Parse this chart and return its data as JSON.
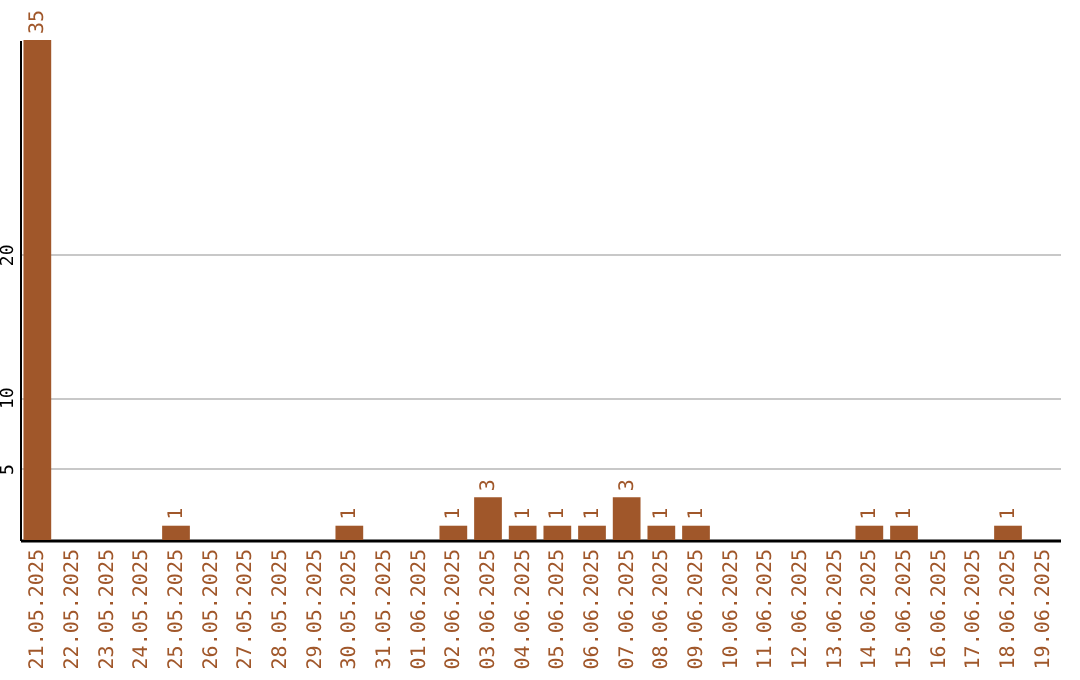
{
  "chart_data": {
    "type": "bar",
    "categories": [
      "21.05.2025",
      "22.05.2025",
      "23.05.2025",
      "24.05.2025",
      "25.05.2025",
      "26.05.2025",
      "27.05.2025",
      "28.05.2025",
      "29.05.2025",
      "30.05.2025",
      "31.05.2025",
      "01.06.2025",
      "02.06.2025",
      "03.06.2025",
      "04.06.2025",
      "05.06.2025",
      "06.06.2025",
      "07.06.2025",
      "08.06.2025",
      "09.06.2025",
      "10.06.2025",
      "11.06.2025",
      "12.06.2025",
      "13.06.2025",
      "14.06.2025",
      "15.06.2025",
      "16.06.2025",
      "17.06.2025",
      "18.06.2025",
      "19.06.2025"
    ],
    "values": [
      35,
      0,
      0,
      0,
      1,
      0,
      0,
      0,
      0,
      1,
      0,
      0,
      1,
      3,
      1,
      1,
      1,
      3,
      1,
      1,
      0,
      0,
      0,
      0,
      1,
      1,
      0,
      0,
      1,
      0
    ],
    "value_labels": [
      "35",
      null,
      null,
      null,
      "1",
      null,
      null,
      null,
      null,
      "1",
      null,
      null,
      "1",
      "3",
      "1",
      "1",
      "1",
      "3",
      "1",
      "1",
      null,
      null,
      null,
      null,
      "1",
      "1",
      null,
      null,
      "1",
      null
    ],
    "color": "#a0572a",
    "ylim": [
      0,
      35
    ],
    "yticks": [
      5,
      10,
      20
    ],
    "grid": "y"
  }
}
